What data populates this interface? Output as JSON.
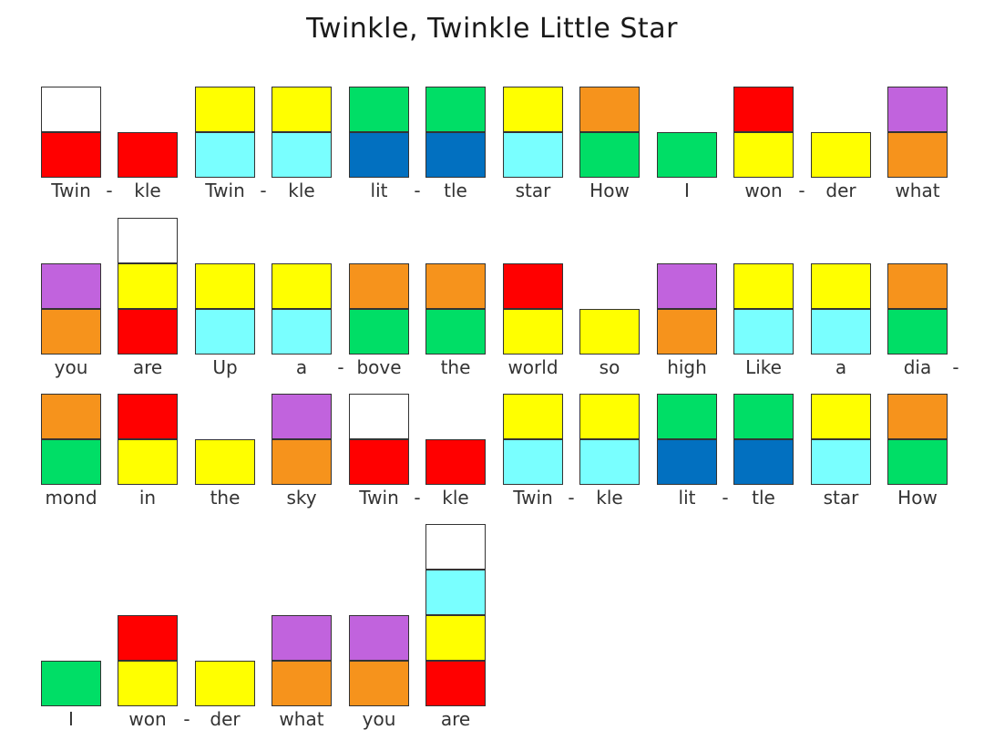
{
  "title": "Twinkle, Twinkle Little Star",
  "palette": {
    "W": "#ffffff",
    "R": "#ff0000",
    "Y": "#ffff00",
    "C": "#79ffff",
    "G": "#00de66",
    "B": "#0270c0",
    "O": "#f6931c",
    "P": "#c163dd"
  },
  "rows": [
    {
      "syllables": [
        {
          "text": "Twin",
          "colors": [
            "R",
            "W"
          ]
        },
        {
          "text": "kle",
          "colors": [
            "R"
          ]
        },
        {
          "text": "Twin",
          "colors": [
            "C",
            "Y"
          ]
        },
        {
          "text": "kle",
          "colors": [
            "C",
            "Y"
          ]
        },
        {
          "text": "lit",
          "colors": [
            "B",
            "G"
          ]
        },
        {
          "text": "tle",
          "colors": [
            "B",
            "G"
          ]
        },
        {
          "text": "star",
          "colors": [
            "C",
            "Y"
          ]
        },
        {
          "text": "How",
          "colors": [
            "G",
            "O"
          ]
        },
        {
          "text": "I",
          "colors": [
            "G"
          ]
        },
        {
          "text": "won",
          "colors": [
            "Y",
            "R"
          ]
        },
        {
          "text": "der",
          "colors": [
            "Y"
          ]
        },
        {
          "text": "what",
          "colors": [
            "O",
            "P"
          ]
        }
      ],
      "hyphens": [
        0,
        2,
        4,
        9
      ]
    },
    {
      "syllables": [
        {
          "text": "you",
          "colors": [
            "O",
            "P"
          ]
        },
        {
          "text": "are",
          "colors": [
            "R",
            "Y",
            "W"
          ]
        },
        {
          "text": "Up",
          "colors": [
            "C",
            "Y"
          ]
        },
        {
          "text": "a",
          "colors": [
            "C",
            "Y"
          ]
        },
        {
          "text": "bove",
          "colors": [
            "G",
            "O"
          ]
        },
        {
          "text": "the",
          "colors": [
            "G",
            "O"
          ]
        },
        {
          "text": "world",
          "colors": [
            "Y",
            "R"
          ]
        },
        {
          "text": "so",
          "colors": [
            "Y"
          ]
        },
        {
          "text": "high",
          "colors": [
            "O",
            "P"
          ]
        },
        {
          "text": "Like",
          "colors": [
            "C",
            "Y"
          ]
        },
        {
          "text": "a",
          "colors": [
            "C",
            "Y"
          ]
        },
        {
          "text": "dia",
          "colors": [
            "G",
            "O"
          ]
        }
      ],
      "hyphens": [
        3,
        11
      ]
    },
    {
      "syllables": [
        {
          "text": "mond",
          "colors": [
            "G",
            "O"
          ]
        },
        {
          "text": "in",
          "colors": [
            "Y",
            "R"
          ]
        },
        {
          "text": "the",
          "colors": [
            "Y"
          ]
        },
        {
          "text": "sky",
          "colors": [
            "O",
            "P"
          ]
        },
        {
          "text": "Twin",
          "colors": [
            "R",
            "W"
          ]
        },
        {
          "text": "kle",
          "colors": [
            "R"
          ]
        },
        {
          "text": "Twin",
          "colors": [
            "C",
            "Y"
          ]
        },
        {
          "text": "kle",
          "colors": [
            "C",
            "Y"
          ]
        },
        {
          "text": "lit",
          "colors": [
            "B",
            "G"
          ]
        },
        {
          "text": "tle",
          "colors": [
            "B",
            "G"
          ]
        },
        {
          "text": "star",
          "colors": [
            "C",
            "Y"
          ]
        },
        {
          "text": "How",
          "colors": [
            "G",
            "O"
          ]
        }
      ],
      "hyphens": [
        4,
        6,
        8
      ]
    },
    {
      "syllables": [
        {
          "text": "I",
          "colors": [
            "G"
          ]
        },
        {
          "text": "won",
          "colors": [
            "Y",
            "R"
          ]
        },
        {
          "text": "der",
          "colors": [
            "Y"
          ]
        },
        {
          "text": "what",
          "colors": [
            "O",
            "P"
          ]
        },
        {
          "text": "you",
          "colors": [
            "O",
            "P"
          ]
        },
        {
          "text": "are",
          "colors": [
            "R",
            "Y",
            "C",
            "W"
          ]
        }
      ],
      "hyphens": [
        1
      ]
    }
  ]
}
